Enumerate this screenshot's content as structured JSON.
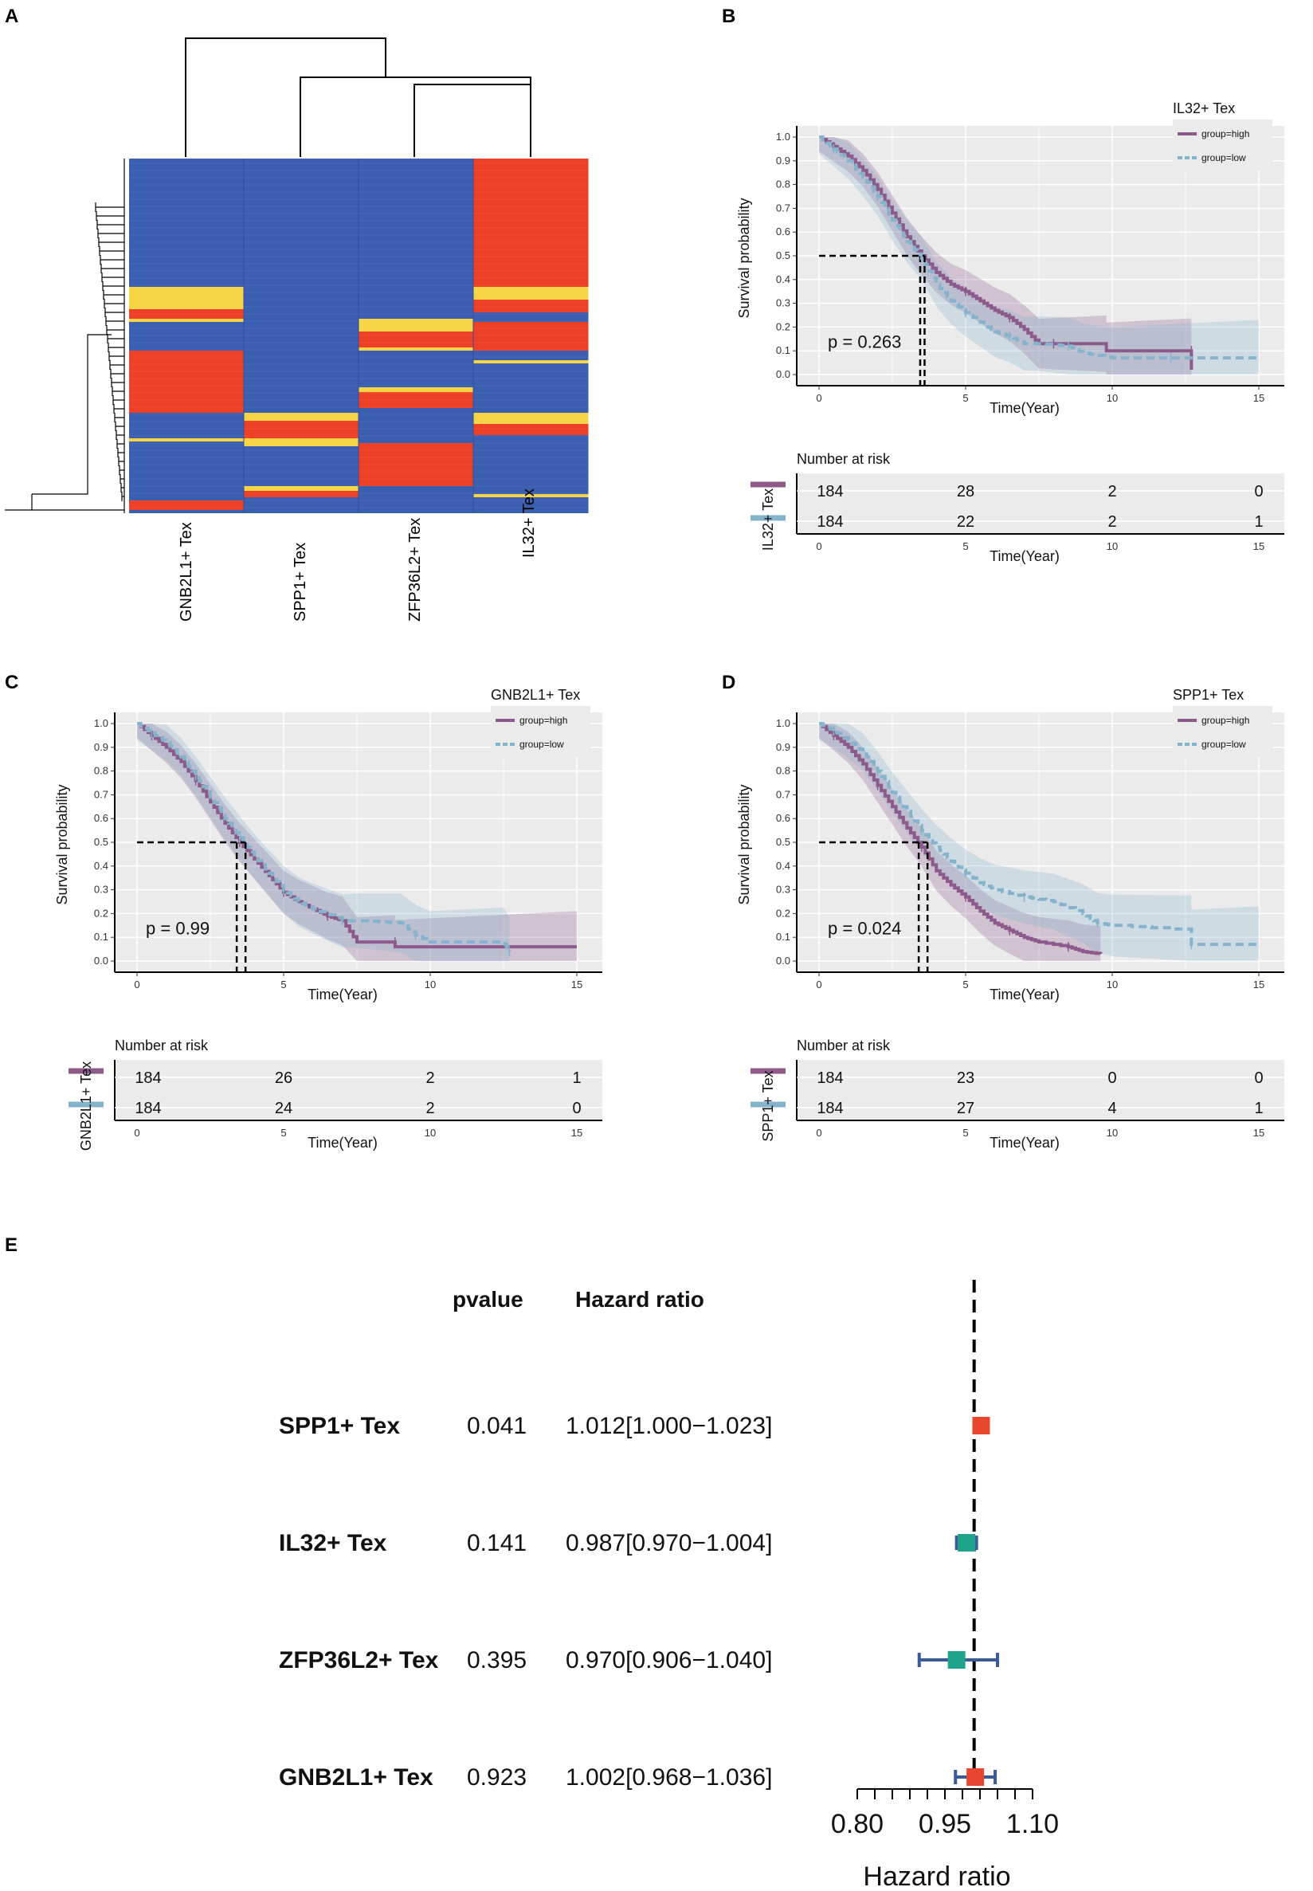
{
  "panel_labels": {
    "a": "A",
    "b": "B",
    "c": "C",
    "d": "D",
    "e": "E"
  },
  "heatmap": {
    "columns": [
      "GNB2L1+ Tex",
      "SPP1+ Tex",
      "ZFP36L2+ Tex",
      "IL32+ Tex"
    ],
    "colors": {
      "low": "#3a5fb0",
      "mid": "#f7d445",
      "high": "#ee4026"
    }
  },
  "chart_data": [
    {
      "type": "line",
      "panel": "B",
      "legend_title": "IL32+ Tex",
      "p_text": "p = 0.263",
      "ylabel": "Survival probability",
      "xlabel": "Time(Year)",
      "xlim": [
        0,
        15
      ],
      "ylim": [
        0,
        1
      ],
      "legend": [
        "group=high",
        "group=low"
      ],
      "x_ticks": [
        "0",
        "5",
        "10",
        "15"
      ],
      "y_ticks": [
        "0.0",
        "0.1",
        "0.2",
        "0.3",
        "0.4",
        "0.5",
        "0.6",
        "0.7",
        "0.8",
        "0.9",
        "1.0"
      ],
      "series": [
        {
          "name": "group=high",
          "color": "#8c5b8c",
          "points": [
            [
              0,
              1
            ],
            [
              0.5,
              0.96
            ],
            [
              1,
              0.92
            ],
            [
              1.5,
              0.86
            ],
            [
              2,
              0.78
            ],
            [
              2.5,
              0.68
            ],
            [
              3,
              0.58
            ],
            [
              3.5,
              0.5
            ],
            [
              4,
              0.43
            ],
            [
              4.5,
              0.38
            ],
            [
              5,
              0.35
            ],
            [
              5.5,
              0.31
            ],
            [
              6,
              0.27
            ],
            [
              6.5,
              0.24
            ],
            [
              7,
              0.19
            ],
            [
              7.5,
              0.13
            ],
            [
              8,
              0.13
            ],
            [
              9.8,
              0.13
            ],
            [
              9.8,
              0.1
            ],
            [
              12.7,
              0.1
            ],
            [
              12.7,
              0.02
            ]
          ],
          "median": 3.45
        },
        {
          "name": "group=low",
          "color": "#85b3cc",
          "points": [
            [
              0,
              1
            ],
            [
              0.5,
              0.95
            ],
            [
              1,
              0.9
            ],
            [
              1.5,
              0.83
            ],
            [
              2,
              0.75
            ],
            [
              2.5,
              0.65
            ],
            [
              3,
              0.56
            ],
            [
              3.5,
              0.49
            ],
            [
              4,
              0.38
            ],
            [
              4.5,
              0.31
            ],
            [
              5,
              0.26
            ],
            [
              5.5,
              0.22
            ],
            [
              6,
              0.18
            ],
            [
              6.5,
              0.16
            ],
            [
              7,
              0.13
            ],
            [
              7.5,
              0.13
            ],
            [
              8.5,
              0.12
            ],
            [
              9,
              0.09
            ],
            [
              10,
              0.07
            ],
            [
              12,
              0.07
            ],
            [
              15,
              0.07
            ]
          ],
          "median": 3.6
        }
      ],
      "risk_table": {
        "title": "Number at risk",
        "strata_label": "IL32+ Tex",
        "rows": [
          [
            "184",
            "28",
            "2",
            "0"
          ],
          [
            "184",
            "22",
            "2",
            "1"
          ]
        ]
      }
    },
    {
      "type": "line",
      "panel": "C",
      "legend_title": "GNB2L1+ Tex",
      "p_text": "p = 0.99",
      "ylabel": "Survival probability",
      "xlabel": "Time(Year)",
      "xlim": [
        0,
        15
      ],
      "ylim": [
        0,
        1
      ],
      "legend": [
        "group=high",
        "group=low"
      ],
      "x_ticks": [
        "0",
        "5",
        "10",
        "15"
      ],
      "y_ticks": [
        "0.0",
        "0.1",
        "0.2",
        "0.3",
        "0.4",
        "0.5",
        "0.6",
        "0.7",
        "0.8",
        "0.9",
        "1.0"
      ],
      "series": [
        {
          "name": "group=high",
          "color": "#8c5b8c",
          "points": [
            [
              0,
              1
            ],
            [
              0.5,
              0.95
            ],
            [
              1,
              0.9
            ],
            [
              1.5,
              0.84
            ],
            [
              2,
              0.76
            ],
            [
              2.5,
              0.67
            ],
            [
              3,
              0.58
            ],
            [
              3.5,
              0.5
            ],
            [
              4,
              0.43
            ],
            [
              4.5,
              0.36
            ],
            [
              5,
              0.29
            ],
            [
              5.5,
              0.25
            ],
            [
              6,
              0.22
            ],
            [
              6.5,
              0.19
            ],
            [
              7,
              0.17
            ],
            [
              7.5,
              0.08
            ],
            [
              8.8,
              0.08
            ],
            [
              8.8,
              0.06
            ],
            [
              15,
              0.06
            ]
          ],
          "median": 3.4
        },
        {
          "name": "group=low",
          "color": "#85b3cc",
          "points": [
            [
              0,
              1
            ],
            [
              0.5,
              0.96
            ],
            [
              1,
              0.92
            ],
            [
              1.5,
              0.86
            ],
            [
              2,
              0.78
            ],
            [
              2.5,
              0.69
            ],
            [
              3,
              0.6
            ],
            [
              3.5,
              0.52
            ],
            [
              4,
              0.44
            ],
            [
              4.5,
              0.37
            ],
            [
              5,
              0.3
            ],
            [
              5.5,
              0.25
            ],
            [
              6,
              0.22
            ],
            [
              7,
              0.17
            ],
            [
              7.5,
              0.17
            ],
            [
              9,
              0.16
            ],
            [
              9.5,
              0.11
            ],
            [
              10,
              0.08
            ],
            [
              12.5,
              0.08
            ],
            [
              12.7,
              0.04
            ]
          ],
          "median": 3.7
        }
      ],
      "risk_table": {
        "title": "Number at risk",
        "strata_label": "GNB2L1+ Tex",
        "rows": [
          [
            "184",
            "26",
            "2",
            "1"
          ],
          [
            "184",
            "24",
            "2",
            "0"
          ]
        ]
      }
    },
    {
      "type": "line",
      "panel": "D",
      "legend_title": "SPP1+ Tex",
      "p_text": "p = 0.024",
      "ylabel": "Survival probability",
      "xlabel": "Time(Year)",
      "xlim": [
        0,
        15
      ],
      "ylim": [
        0,
        1
      ],
      "legend": [
        "group=high",
        "group=low"
      ],
      "x_ticks": [
        "0",
        "5",
        "10",
        "15"
      ],
      "y_ticks": [
        "0.0",
        "0.1",
        "0.2",
        "0.3",
        "0.4",
        "0.5",
        "0.6",
        "0.7",
        "0.8",
        "0.9",
        "1.0"
      ],
      "series": [
        {
          "name": "group=high",
          "color": "#8c5b8c",
          "points": [
            [
              0,
              1
            ],
            [
              0.5,
              0.95
            ],
            [
              1,
              0.9
            ],
            [
              1.5,
              0.83
            ],
            [
              2,
              0.74
            ],
            [
              2.5,
              0.65
            ],
            [
              3,
              0.56
            ],
            [
              3.5,
              0.48
            ],
            [
              4,
              0.38
            ],
            [
              4.5,
              0.32
            ],
            [
              5,
              0.27
            ],
            [
              5.5,
              0.21
            ],
            [
              6,
              0.16
            ],
            [
              6.5,
              0.13
            ],
            [
              7,
              0.1
            ],
            [
              7.5,
              0.08
            ],
            [
              8.5,
              0.06
            ],
            [
              9,
              0.04
            ],
            [
              9.6,
              0.03
            ]
          ],
          "median": 3.4
        },
        {
          "name": "group=low",
          "color": "#85b3cc",
          "points": [
            [
              0,
              1
            ],
            [
              0.5,
              0.97
            ],
            [
              1,
              0.93
            ],
            [
              1.5,
              0.88
            ],
            [
              2,
              0.8
            ],
            [
              2.5,
              0.71
            ],
            [
              3,
              0.63
            ],
            [
              3.5,
              0.55
            ],
            [
              4,
              0.48
            ],
            [
              4.5,
              0.42
            ],
            [
              5,
              0.37
            ],
            [
              5.5,
              0.33
            ],
            [
              6,
              0.3
            ],
            [
              7,
              0.27
            ],
            [
              8,
              0.25
            ],
            [
              9,
              0.2
            ],
            [
              9.5,
              0.16
            ],
            [
              10,
              0.15
            ],
            [
              12.7,
              0.13
            ],
            [
              12.7,
              0.07
            ],
            [
              15,
              0.07
            ]
          ],
          "median": 3.7
        }
      ],
      "risk_table": {
        "title": "Number at risk",
        "strata_label": "SPP1+ Tex",
        "rows": [
          [
            "184",
            "23",
            "0",
            "0"
          ],
          [
            "184",
            "27",
            "4",
            "1"
          ]
        ]
      }
    },
    {
      "type": "forest",
      "panel": "E",
      "header_pvalue": "pvalue",
      "header_hr": "Hazard ratio",
      "xlabel": "Hazard ratio",
      "reference": 1.0,
      "xlim": [
        0.8,
        1.1
      ],
      "x_ticks": [
        "0.80",
        "0.95",
        "1.10"
      ],
      "rows": [
        {
          "name": "SPP1+ Tex",
          "pvalue": "0.041",
          "hr_text": "1.012[1.000−1.023]",
          "hr": 1.012,
          "lo": 1.0,
          "hi": 1.023,
          "color": "#e8472d"
        },
        {
          "name": "IL32+ Tex",
          "pvalue": "0.141",
          "hr_text": "0.987[0.970−1.004]",
          "hr": 0.987,
          "lo": 0.97,
          "hi": 1.004,
          "color": "#1fa38a"
        },
        {
          "name": "ZFP36L2+ Tex",
          "pvalue": "0.395",
          "hr_text": "0.970[0.906−1.040]",
          "hr": 0.97,
          "lo": 0.906,
          "hi": 1.04,
          "color": "#1fa38a"
        },
        {
          "name": "GNB2L1+ Tex",
          "pvalue": "0.923",
          "hr_text": "1.002[0.968−1.036]",
          "hr": 1.002,
          "lo": 0.968,
          "hi": 1.036,
          "color": "#e8472d"
        }
      ]
    }
  ]
}
